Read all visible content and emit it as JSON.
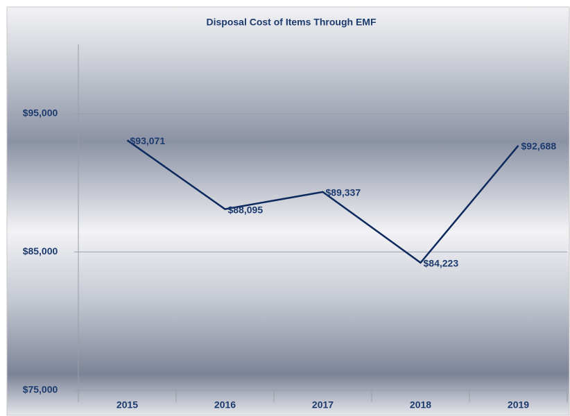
{
  "chart_data": {
    "type": "line",
    "title": "Disposal Cost of Items Through EMF",
    "categories": [
      "2015",
      "2016",
      "2017",
      "2018",
      "2019"
    ],
    "series": [
      {
        "name": "Disposal Cost",
        "color": "#0d2a5e",
        "values": [
          93071,
          88095,
          89337,
          84223,
          92688
        ],
        "value_labels": [
          "$93,071",
          "$88,095",
          "$89,337",
          "$84,223",
          "$92,688"
        ]
      }
    ],
    "ylim": [
      75000,
      100000
    ],
    "yticks": [
      {
        "value": 75000,
        "label": "$75,000"
      },
      {
        "value": 85000,
        "label": "$85,000"
      },
      {
        "value": 95000,
        "label": "$95,000"
      }
    ],
    "grid": true
  }
}
